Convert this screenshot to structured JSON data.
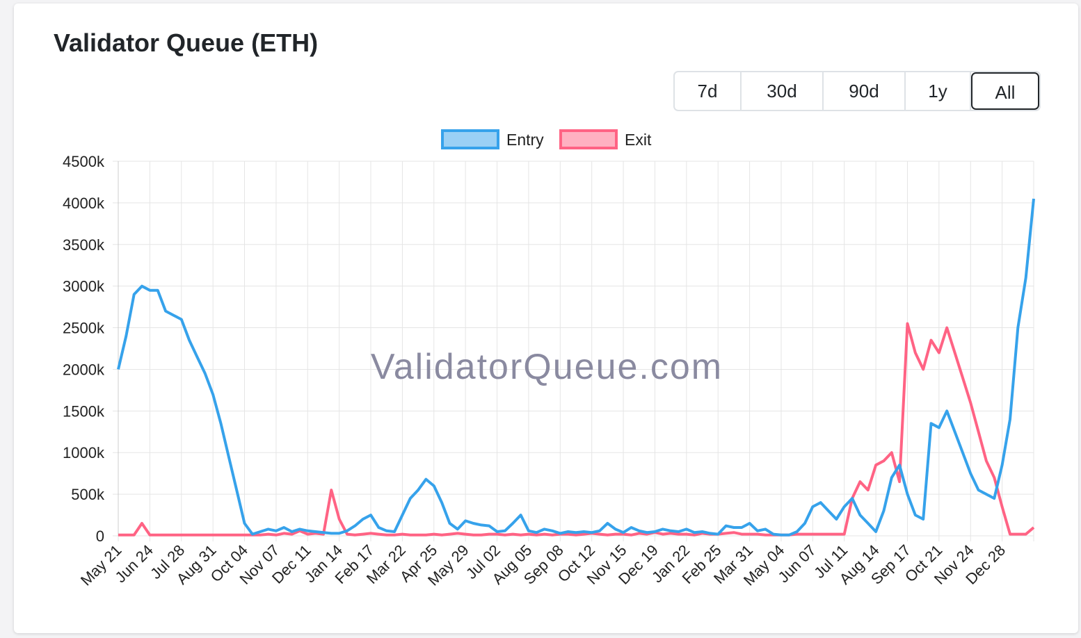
{
  "range_buttons": [
    "7d",
    "30d",
    "90d",
    "1y",
    "All"
  ],
  "active_button": 4,
  "chart_data": {
    "type": "line",
    "title": "Validator Queue (ETH)",
    "watermark": "ValidatorQueue.com",
    "legend": "top",
    "grid": true,
    "categories": [
      "May 21",
      null,
      null,
      null,
      "Jun 24",
      null,
      null,
      null,
      "Jul 28",
      null,
      null,
      null,
      "Aug 31",
      null,
      null,
      null,
      "Oct 04",
      null,
      null,
      null,
      "Nov 07",
      null,
      null,
      null,
      "Dec 11",
      null,
      null,
      null,
      "Jan 14",
      null,
      null,
      null,
      "Feb 17",
      null,
      null,
      null,
      "Mar 22",
      null,
      null,
      null,
      "Apr 25",
      null,
      null,
      null,
      "May 29",
      null,
      null,
      null,
      "Jul 02",
      null,
      null,
      null,
      "Aug 05",
      null,
      null,
      null,
      "Sep 08",
      null,
      null,
      null,
      "Oct 12",
      null,
      null,
      null,
      "Nov 15",
      null,
      null,
      null,
      "Dec 19",
      null,
      null,
      null,
      "Jan 22",
      null,
      null,
      null,
      "Feb 25",
      null,
      null,
      null,
      "Mar 31",
      null,
      null,
      null,
      "May 04",
      null,
      null,
      null,
      "Jun 07",
      null,
      null,
      null,
      "Jul 11",
      null,
      null,
      null,
      "Aug 14",
      null,
      null,
      null,
      "Sep 17",
      null,
      null,
      null,
      "Oct 21",
      null,
      null,
      null,
      "Nov 24",
      null,
      null,
      null,
      "Dec 28",
      null,
      null,
      null,
      null
    ],
    "series": [
      {
        "name": "Entry",
        "color": "#36a2eb",
        "fill": "#9ad0f5",
        "values": [
          2000,
          2400,
          2900,
          3000,
          2950,
          2950,
          2700,
          2650,
          2600,
          2350,
          2150,
          1950,
          1700,
          1350,
          950,
          550,
          150,
          20,
          50,
          80,
          60,
          100,
          50,
          80,
          60,
          50,
          40,
          30,
          30,
          60,
          120,
          200,
          250,
          100,
          60,
          50,
          250,
          450,
          550,
          680,
          600,
          400,
          150,
          80,
          180,
          150,
          130,
          120,
          50,
          60,
          150,
          250,
          60,
          40,
          80,
          60,
          30,
          50,
          40,
          50,
          40,
          60,
          150,
          80,
          40,
          100,
          60,
          40,
          50,
          80,
          60,
          50,
          80,
          40,
          50,
          30,
          20,
          120,
          100,
          100,
          150,
          60,
          80,
          20,
          10,
          10,
          50,
          150,
          350,
          400,
          300,
          200,
          350,
          450,
          250,
          150,
          50,
          300,
          700,
          850,
          500,
          250,
          200,
          1350,
          1300,
          1500,
          1250,
          1000,
          750,
          550,
          500,
          450,
          850,
          1400,
          2500,
          3100,
          4050
        ]
      },
      {
        "name": "Exit",
        "color": "#ff6384",
        "fill": "#ffb1c1",
        "values": [
          10,
          10,
          10,
          150,
          10,
          10,
          10,
          10,
          10,
          10,
          10,
          10,
          10,
          10,
          10,
          10,
          10,
          10,
          10,
          20,
          10,
          30,
          20,
          60,
          20,
          30,
          20,
          550,
          200,
          20,
          10,
          20,
          30,
          20,
          10,
          10,
          20,
          10,
          10,
          10,
          20,
          10,
          20,
          30,
          20,
          10,
          10,
          20,
          20,
          10,
          20,
          10,
          20,
          10,
          20,
          10,
          20,
          20,
          10,
          20,
          30,
          20,
          10,
          20,
          20,
          10,
          30,
          20,
          40,
          20,
          30,
          20,
          20,
          10,
          30,
          20,
          20,
          30,
          40,
          20,
          20,
          20,
          10,
          10,
          10,
          10,
          20,
          20,
          20,
          20,
          20,
          20,
          20,
          450,
          650,
          550,
          850,
          900,
          1000,
          650,
          2550,
          2200,
          2000,
          2350,
          2200,
          2500,
          2200,
          1900,
          1600,
          1250,
          900,
          700,
          350,
          20,
          20,
          20,
          100
        ]
      }
    ],
    "ylim": [
      0,
      4500
    ],
    "yticks": [
      0,
      {
        "value": 500,
        "label": "500k"
      },
      {
        "value": 1000,
        "label": "1000k"
      },
      {
        "value": 1500,
        "label": "1500k"
      },
      {
        "value": 2000,
        "label": "2000k"
      },
      {
        "value": 2500,
        "label": "2500k"
      },
      {
        "value": 3000,
        "label": "3000k"
      },
      {
        "value": 3500,
        "label": "3500k"
      },
      {
        "value": 4000,
        "label": "4000k"
      },
      {
        "value": 4500,
        "label": "4500k"
      }
    ]
  }
}
